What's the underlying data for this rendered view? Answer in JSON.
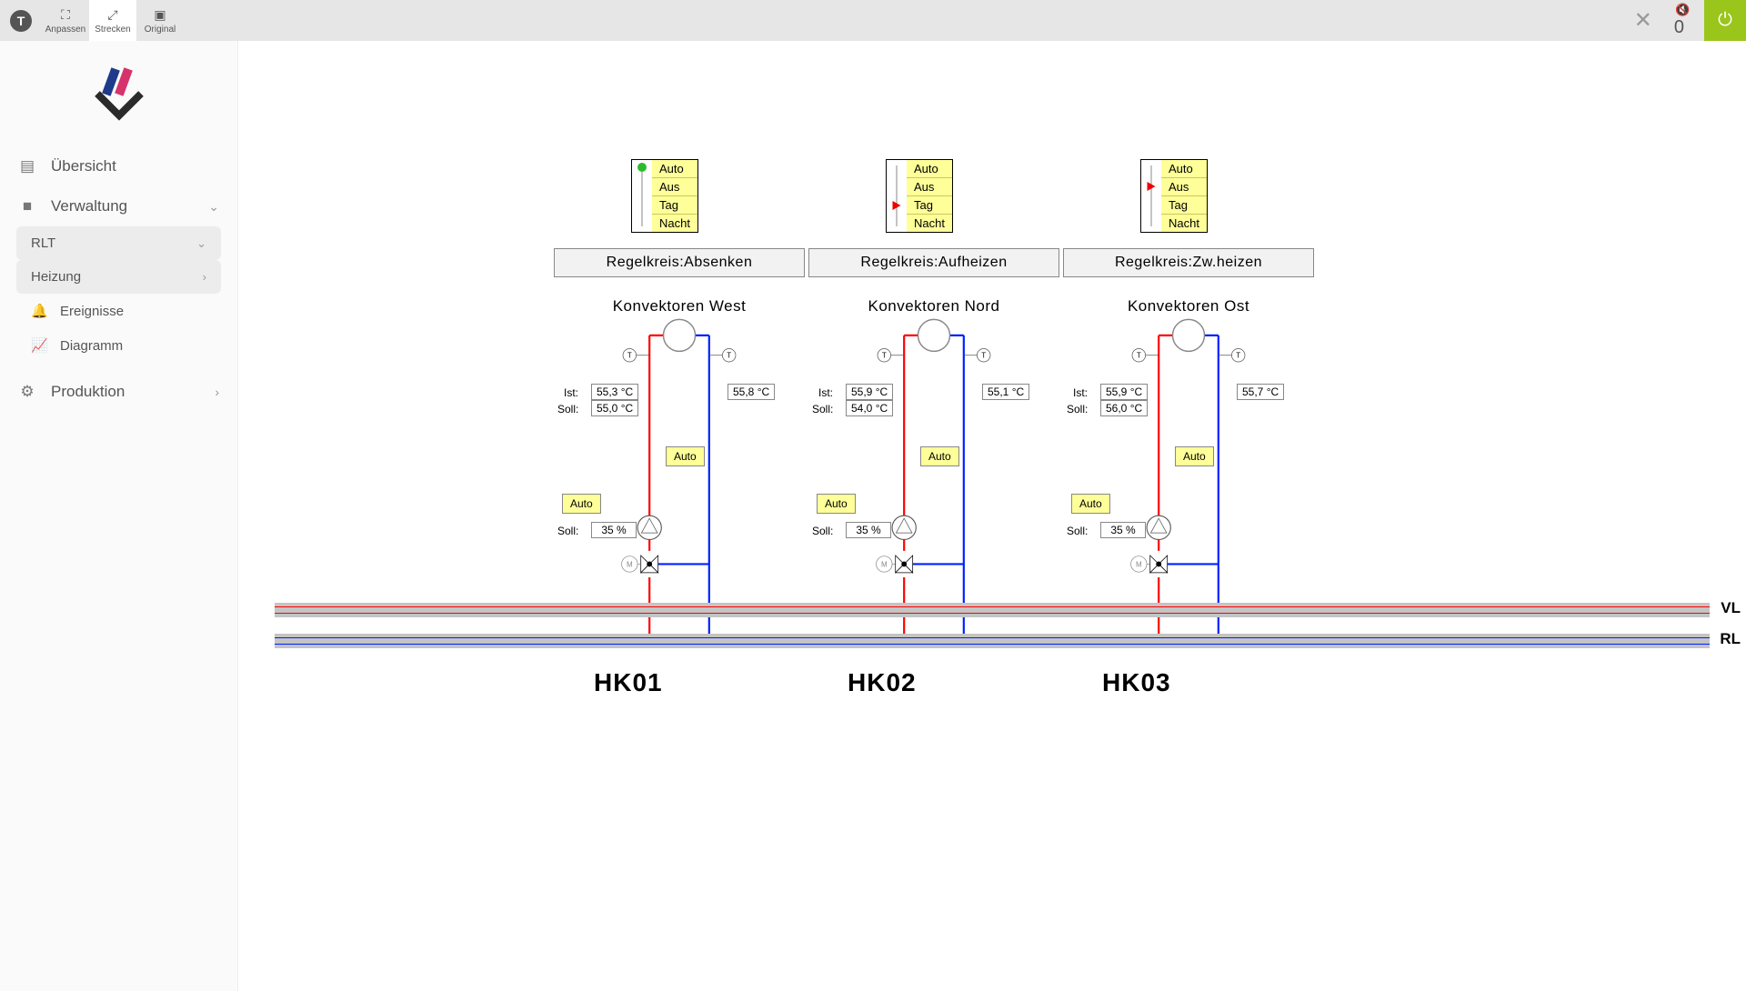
{
  "topbar": {
    "buttons": [
      {
        "label": "Anpassen",
        "active": false
      },
      {
        "label": "Strecken",
        "active": true
      },
      {
        "label": "Original",
        "active": false
      }
    ],
    "alarm_count": "0"
  },
  "sidebar": {
    "items": [
      {
        "label": "Übersicht"
      },
      {
        "label": "Verwaltung",
        "expandable": true
      },
      {
        "label": "Produktion",
        "expandable": true
      }
    ],
    "verwaltung_children": [
      {
        "label": "RLT",
        "shaded": true,
        "chev": true
      },
      {
        "label": "Heizung",
        "shaded": true,
        "chev": true
      },
      {
        "label": "Ereignisse"
      },
      {
        "label": "Diagramm"
      }
    ]
  },
  "modes": {
    "opts": [
      "Auto",
      "Aus",
      "Tag",
      "Nacht"
    ]
  },
  "trunk": {
    "vl": "VL",
    "rl": "RL"
  },
  "labels": {
    "ist": "Ist:",
    "soll": "Soll:",
    "regel_prefix": "Regelkreis:",
    "auto": "Auto"
  },
  "colors": {
    "hot": "#ff0000",
    "cold": "#0020ff",
    "yellow": "#ffff99",
    "trunk": "#c4c4c4",
    "mode_green": "#2dbb2d",
    "mode_red": "#e00000",
    "power": "#9ac51b"
  },
  "circuits": [
    {
      "id": "HK01",
      "title": "Konvektoren West",
      "regel": "Absenken",
      "mode_index": 0,
      "mode_marker": "green",
      "ist": "55,3 °C",
      "soll_t": "55,0 °C",
      "ret_t": "55,8 °C",
      "valve_soll": "35 %"
    },
    {
      "id": "HK02",
      "title": "Konvektoren Nord",
      "regel": "Aufheizen",
      "mode_index": 2,
      "mode_marker": "red",
      "ist": "55,9 °C",
      "soll_t": "54,0 °C",
      "ret_t": "55,1 °C",
      "valve_soll": "35 %"
    },
    {
      "id": "HK03",
      "title": "Konvektoren Ost",
      "regel": "Zw.heizen",
      "mode_index": 1,
      "mode_marker": "red",
      "ist": "55,9 °C",
      "soll_t": "56,0 °C",
      "ret_t": "55,7 °C",
      "valve_soll": "35 %"
    }
  ]
}
